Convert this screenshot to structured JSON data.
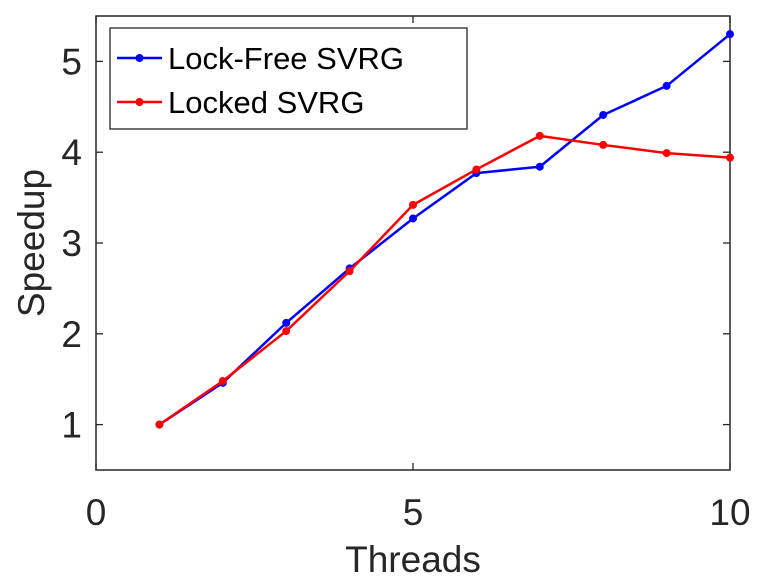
{
  "chart_data": {
    "type": "line",
    "title": "",
    "xlabel": "Threads",
    "ylabel": "Speedup",
    "xlim": [
      0,
      10
    ],
    "ylim": [
      0.5,
      5.5
    ],
    "xticks": [
      0,
      5,
      10
    ],
    "yticks": [
      1,
      2,
      3,
      4,
      5
    ],
    "x": [
      1,
      2,
      3,
      4,
      5,
      6,
      7,
      8,
      9,
      10
    ],
    "series": [
      {
        "name": "Lock-Free SVRG",
        "color": "#0000ff",
        "values": [
          1.0,
          1.46,
          2.12,
          2.72,
          3.27,
          3.77,
          3.84,
          4.41,
          4.73,
          5.3
        ]
      },
      {
        "name": "Locked SVRG",
        "color": "#ff0000",
        "values": [
          1.0,
          1.48,
          2.03,
          2.69,
          3.42,
          3.81,
          4.18,
          4.08,
          3.99,
          3.94
        ]
      }
    ],
    "grid": false,
    "legend_position": "top-left"
  }
}
